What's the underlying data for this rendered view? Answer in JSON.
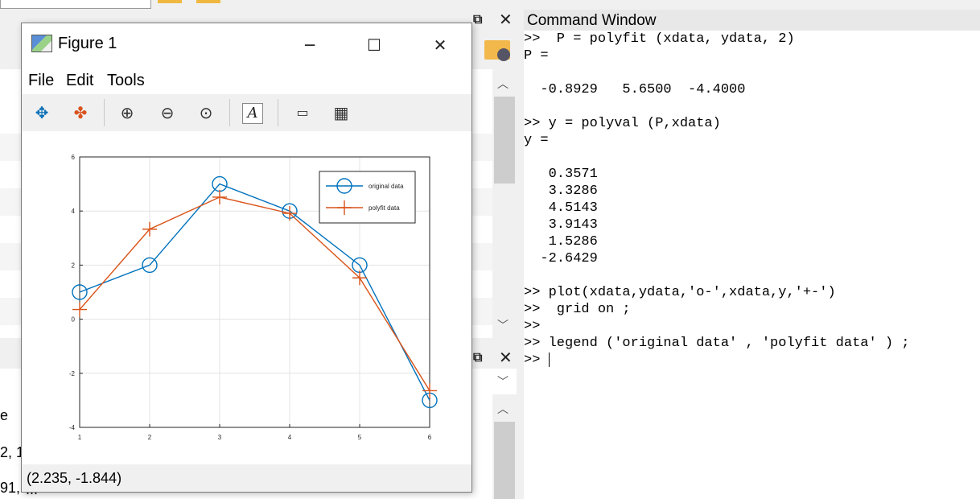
{
  "background": {
    "left_text_1": "e",
    "left_text_2": "2, 1,",
    "left_text_3": "91,",
    "left_text_4": "..."
  },
  "figure": {
    "title": "Figure 1",
    "menu": [
      "File",
      "Edit",
      "Tools"
    ],
    "toolbar_icons": [
      "pan-icon",
      "rotate-3d-icon",
      "zoom-in-icon",
      "zoom-out-icon",
      "restore-view-icon",
      "insert-text-icon",
      "legend-icon",
      "grid-icon"
    ],
    "status": "(2.235, -1.844)"
  },
  "command_window": {
    "title": "Command Window",
    "lines": [
      ">>  P = polyfit (xdata, ydata, 2)",
      "P =",
      "",
      "  -0.8929   5.6500  -4.4000",
      "",
      ">> y = polyval (P,xdata)",
      "y =",
      "",
      "   0.3571",
      "   3.3286",
      "   4.5143",
      "   3.9143",
      "   1.5286",
      "  -2.6429",
      "",
      ">> plot(xdata,ydata,'o-',xdata,y,'+-')",
      ">>  grid on ;",
      ">>",
      ">> legend ('original data' , 'polyfit data' ) ;",
      ">> "
    ]
  },
  "chart_data": {
    "type": "line",
    "title": "",
    "xlabel": "",
    "ylabel": "",
    "xlim": [
      1,
      6
    ],
    "ylim": [
      -4,
      6
    ],
    "x_ticks": [
      "1",
      "2",
      "3",
      "4",
      "5",
      "6"
    ],
    "y_ticks": [
      "6",
      "4",
      "2",
      "0",
      "-2",
      "-4"
    ],
    "grid": true,
    "legend_placement": "top-right",
    "x": [
      1,
      2,
      3,
      4,
      5,
      6
    ],
    "series": [
      {
        "name": "original data",
        "values": [
          1,
          2,
          5,
          4,
          2,
          -3
        ],
        "color": "#0072BD",
        "marker": "circle"
      },
      {
        "name": "polyfit data",
        "values": [
          0.3571,
          3.3286,
          4.5143,
          3.9143,
          1.5286,
          -2.6429
        ],
        "color": "#D95319",
        "marker": "plus"
      }
    ]
  }
}
